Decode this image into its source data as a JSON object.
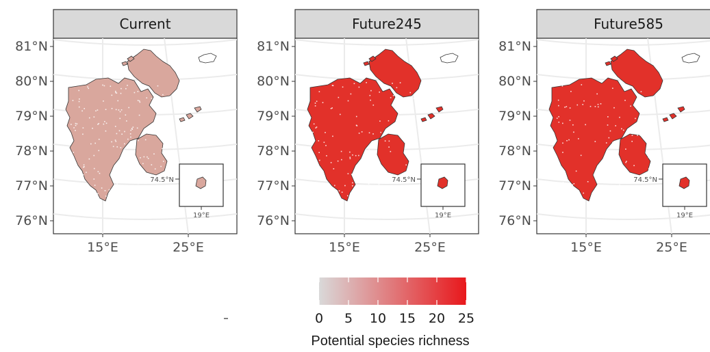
{
  "panels": [
    {
      "title": "Current",
      "fill": "#d9a79d",
      "speckle": 0.18
    },
    {
      "title": "Future245",
      "fill": "#e2312a",
      "speckle": 0.12
    },
    {
      "title": "Future585",
      "fill": "#e2312a",
      "speckle": 0.1
    }
  ],
  "axes": {
    "lat_labels": [
      "81°N",
      "80°N",
      "79°N",
      "78°N",
      "77°N",
      "76°N"
    ],
    "lon_labels": [
      "15°E",
      "25°E"
    ]
  },
  "inset": {
    "lat_label": "74.5°N",
    "lon_label": "19°E"
  },
  "legend": {
    "title": "Potential species richness",
    "ticks": [
      "0",
      "5",
      "10",
      "15",
      "20",
      "25"
    ],
    "min": 0,
    "max": 25,
    "color_low": "#d9d9d9",
    "color_high": "#e8181c"
  },
  "colors": {
    "strip_bg": "#d9d9d9",
    "grid": "#ebebeb",
    "outline": "#333333",
    "panel_border": "#333333"
  }
}
